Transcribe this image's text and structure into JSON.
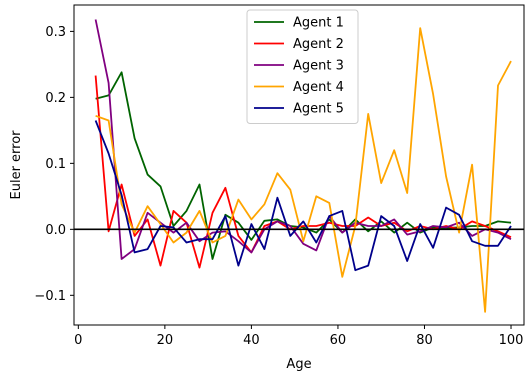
{
  "chart_data": {
    "type": "line",
    "xlabel": "Age",
    "ylabel": "Euler error",
    "xlim": [
      -1,
      103
    ],
    "ylim": [
      -0.145,
      0.34
    ],
    "xticks": [
      0,
      20,
      40,
      60,
      80,
      100
    ],
    "yticks": [
      -0.1,
      0.0,
      0.1,
      0.2,
      0.3
    ],
    "xtick_labels": [
      "0",
      "20",
      "40",
      "60",
      "80",
      "100"
    ],
    "ytick_labels": [
      "−0.1",
      "0.0",
      "0.1",
      "0.2",
      "0.3"
    ],
    "reference_line": 0.0,
    "legend": "top-center",
    "grid": false,
    "x": [
      4,
      7,
      10,
      13,
      16,
      19,
      22,
      25,
      28,
      31,
      34,
      37,
      40,
      43,
      46,
      49,
      52,
      55,
      58,
      61,
      64,
      67,
      70,
      73,
      76,
      79,
      82,
      85,
      88,
      91,
      94,
      97,
      100
    ],
    "series": [
      {
        "name": "Agent 1",
        "color": "#006400",
        "values": [
          0.198,
          0.203,
          0.238,
          0.138,
          0.083,
          0.065,
          0.005,
          0.028,
          0.068,
          -0.045,
          0.022,
          0.01,
          -0.016,
          0.013,
          0.015,
          0.005,
          0.003,
          -0.005,
          0.015,
          -0.005,
          0.015,
          -0.003,
          0.012,
          -0.005,
          0.01,
          -0.005,
          0.003,
          0.002,
          0.003,
          0.005,
          0.005,
          0.012,
          0.01
        ]
      },
      {
        "name": "Agent 2",
        "color": "#ff0000",
        "values": [
          0.233,
          -0.003,
          0.068,
          -0.01,
          0.015,
          -0.055,
          0.028,
          0.01,
          -0.058,
          0.025,
          0.063,
          -0.01,
          -0.035,
          0.005,
          0.012,
          0.0,
          0.005,
          0.005,
          0.01,
          0.005,
          0.005,
          0.018,
          0.005,
          0.01,
          -0.003,
          0.005,
          0.0,
          0.005,
          0.0,
          0.012,
          0.005,
          -0.003,
          -0.012
        ]
      },
      {
        "name": "Agent 3",
        "color": "#800080",
        "values": [
          0.318,
          0.222,
          -0.045,
          -0.03,
          0.025,
          0.01,
          -0.005,
          0.01,
          -0.018,
          -0.005,
          -0.003,
          -0.018,
          -0.035,
          0.0,
          0.012,
          0.005,
          -0.022,
          -0.032,
          0.02,
          -0.005,
          0.01,
          0.005,
          0.005,
          0.015,
          -0.008,
          -0.003,
          0.005,
          0.003,
          0.01,
          -0.01,
          0.0,
          -0.005,
          -0.015
        ]
      },
      {
        "name": "Agent 4",
        "color": "#ffa500",
        "values": [
          0.172,
          0.165,
          0.038,
          -0.005,
          0.035,
          0.008,
          -0.02,
          -0.005,
          0.028,
          -0.02,
          -0.01,
          0.045,
          0.015,
          0.038,
          0.085,
          0.06,
          -0.018,
          0.05,
          0.04,
          -0.072,
          0.005,
          0.175,
          0.07,
          0.12,
          0.055,
          0.305,
          0.205,
          0.08,
          -0.005,
          0.098,
          -0.125,
          0.218,
          0.255
        ]
      },
      {
        "name": "Agent 5",
        "color": "#00008b",
        "values": [
          0.165,
          0.115,
          0.052,
          -0.035,
          -0.03,
          0.005,
          0.003,
          -0.02,
          -0.015,
          -0.015,
          0.02,
          -0.055,
          0.008,
          -0.03,
          0.048,
          -0.01,
          0.012,
          -0.02,
          0.02,
          0.028,
          -0.062,
          -0.055,
          0.02,
          0.005,
          -0.048,
          0.008,
          -0.028,
          0.033,
          0.022,
          -0.018,
          -0.025,
          -0.025,
          0.005
        ]
      }
    ]
  }
}
